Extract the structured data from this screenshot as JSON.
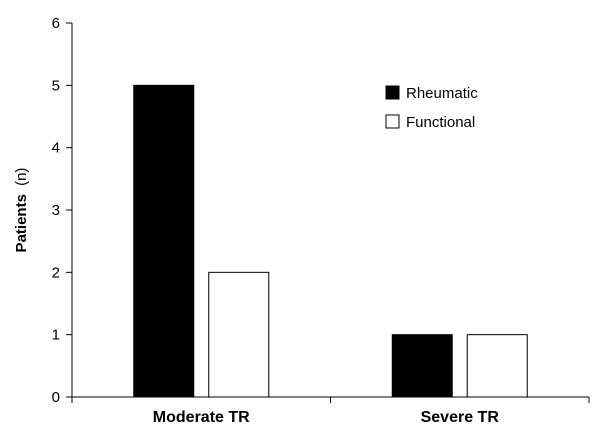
{
  "chart_data": {
    "type": "bar",
    "categories": [
      "Moderate TR",
      "Severe TR"
    ],
    "series": [
      {
        "name": "Rheumatic",
        "values": [
          5,
          1
        ],
        "color": "#000000"
      },
      {
        "name": "Functional",
        "values": [
          2,
          1
        ],
        "color": "#ffffff"
      }
    ],
    "xlabel": "",
    "ylabel": {
      "main": "Patients",
      "unit": "(n)"
    },
    "ylim": [
      0,
      6
    ],
    "yticks": [
      0,
      1,
      2,
      3,
      4,
      5,
      6
    ],
    "grid": false,
    "legend_position": "top-right"
  }
}
